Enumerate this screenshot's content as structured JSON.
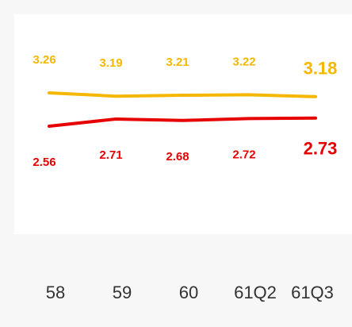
{
  "chart_data": {
    "type": "line",
    "categories": [
      "58",
      "59",
      "60",
      "61Q2",
      "61Q3"
    ],
    "series": [
      {
        "color": "#f5b800",
        "values": [
          3.26,
          3.19,
          3.21,
          3.22,
          3.18
        ]
      },
      {
        "color": "#e60000",
        "values": [
          2.56,
          2.71,
          2.68,
          2.72,
          2.73
        ]
      }
    ],
    "ylim": [
      0,
      5
    ]
  }
}
